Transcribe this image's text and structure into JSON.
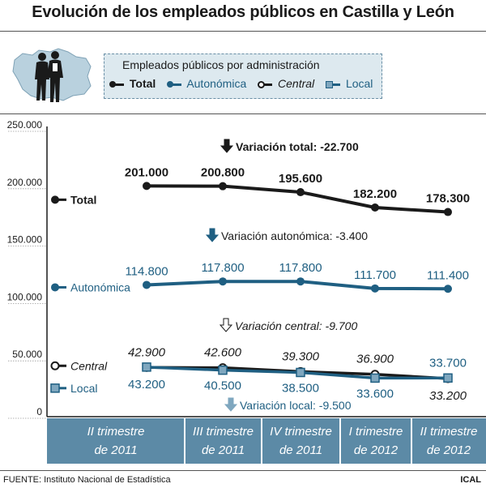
{
  "title": "Evolución de los empleados públicos en Castilla y León",
  "legend": {
    "title": "Empleados públicos por administración",
    "items": [
      {
        "label": "Total",
        "color": "#1a1a1a",
        "marker": "filled-circle"
      },
      {
        "label": "Autonómica",
        "color": "#1f5f82",
        "marker": "filled-circle"
      },
      {
        "label": "Central",
        "color": "#1a1a1a",
        "marker": "open-circle"
      },
      {
        "label": "Local",
        "color": "#1f5f82",
        "marker": "square"
      }
    ]
  },
  "footer": {
    "source": "FUENTE: Instituto Nacional de Estadística",
    "credit": "ICAL"
  },
  "icons": [
    "castilla-leon-map-icon",
    "people-silhouette-icon",
    "arrow-down-icon"
  ],
  "chart_data": {
    "type": "line",
    "categories": [
      "II trimestre de 2011",
      "III trimestre de 2011",
      "IV trimestre de 2011",
      "I trimestre de 2012",
      "II trimestre de 2012"
    ],
    "category_lines": [
      [
        "II trimestre",
        "de 2011"
      ],
      [
        "III trimestre",
        "de 2011"
      ],
      [
        "IV trimestre",
        "de 2011"
      ],
      [
        "I trimestre",
        "de 2012"
      ],
      [
        "II trimestre",
        "de 2012"
      ]
    ],
    "ylim": [
      0,
      250000
    ],
    "y_ticks": [
      0,
      50000,
      100000,
      150000,
      200000,
      250000
    ],
    "y_tick_labels": [
      "0",
      "50.000",
      "100.000",
      "150.000",
      "200.000",
      "250.000"
    ],
    "series": [
      {
        "name": "Total",
        "label": "Total",
        "color": "#1a1a1a",
        "marker": "filled-circle",
        "values": [
          201000,
          200800,
          195600,
          182200,
          178300
        ],
        "labels": [
          "201.000",
          "200.800",
          "195.600",
          "182.200",
          "178.300"
        ]
      },
      {
        "name": "Autonómica",
        "label": "Autonómica",
        "color": "#1f5f82",
        "marker": "filled-circle",
        "values": [
          114800,
          117800,
          117800,
          111700,
          111400
        ],
        "labels": [
          "114.800",
          "117.800",
          "117.800",
          "111.700",
          "111.400"
        ]
      },
      {
        "name": "Central",
        "label": "Central",
        "color": "#1a1a1a",
        "marker": "open-circle",
        "values": [
          42900,
          42600,
          39300,
          36900,
          33200
        ],
        "labels": [
          "42.900",
          "42.600",
          "39.300",
          "36.900",
          "33.200"
        ]
      },
      {
        "name": "Local",
        "label": "Local",
        "color": "#1f5f82",
        "marker": "square",
        "values": [
          43200,
          40500,
          38500,
          33600,
          33700
        ],
        "labels": [
          "43.200",
          "40.500",
          "38.500",
          "33.600",
          "33.700"
        ]
      }
    ],
    "annotations": [
      {
        "id": "total",
        "prefix": "Variación total: ",
        "value": "-22.700"
      },
      {
        "id": "autonomica",
        "prefix": "Variación autonómica: ",
        "value": "-3.400"
      },
      {
        "id": "central",
        "prefix": "Variación central: ",
        "value": "-9.700"
      },
      {
        "id": "local",
        "prefix": "Variación local: ",
        "value": "-9.500"
      }
    ]
  }
}
